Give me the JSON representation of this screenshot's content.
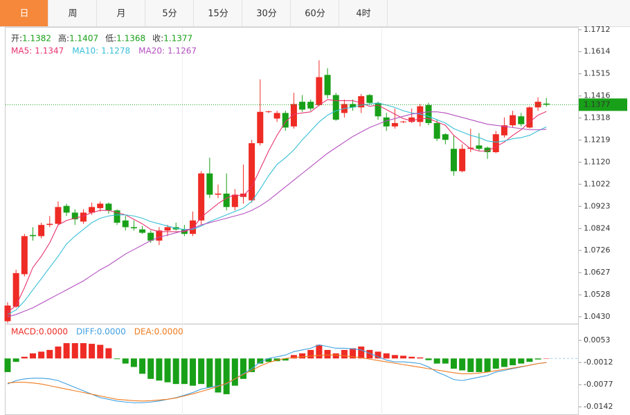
{
  "tabs": [
    "日",
    "周",
    "月",
    "5分",
    "15分",
    "30分",
    "60分",
    "4时"
  ],
  "active_tab": 0,
  "chart_data": {
    "type": "candlestick",
    "up_color": "#ee2b24",
    "down_color": "#18a018",
    "ylim": [
      1.0402,
      1.1721
    ],
    "yticks": [
      1.1712,
      1.1614,
      1.1515,
      1.1416,
      1.1318,
      1.1219,
      {
        "value": 1.112,
        "label": "1.1120"
      },
      1.1022,
      1.0923,
      1.0824,
      1.0726,
      1.0627,
      1.0528,
      {
        "value": 1.043,
        "label": "1.0430"
      }
    ],
    "ohlc_labels": [
      "开:",
      "高:",
      "低:",
      "收:"
    ],
    "open": [
      1.041,
      1.0475,
      1.062,
      1.0795,
      1.079,
      1.084,
      1.0845,
      1.0925,
      1.0895,
      1.0855,
      1.0895,
      1.0915,
      1.0935,
      1.0905,
      1.086,
      1.083,
      1.082,
      1.0805,
      1.077,
      1.0815,
      1.083,
      1.082,
      1.08,
      1.086,
      1.107,
      1.0975,
      1.098,
      1.092,
      1.0965,
      1.095,
      1.1205,
      1.1345,
      1.1315,
      1.134,
      1.128,
      1.139,
      1.139,
      1.1375,
      1.151,
      1.142,
      1.134,
      1.138,
      1.1365,
      1.142,
      1.1385,
      1.132,
      1.128,
      1.13,
      1.13,
      1.13,
      1.1375,
      1.1295,
      1.1245,
      1.118,
      1.108,
      1.118,
      1.1195,
      1.1185,
      1.1165,
      1.124,
      1.1285,
      1.1325,
      1.1275,
      1.1365,
      1.1382
    ],
    "high": [
      1.0495,
      1.064,
      1.08,
      1.083,
      1.085,
      1.088,
      1.0945,
      1.0935,
      1.091,
      1.091,
      1.094,
      1.0945,
      1.094,
      1.091,
      1.088,
      1.086,
      1.0835,
      1.0815,
      1.083,
      1.084,
      1.085,
      1.084,
      1.09,
      1.108,
      1.114,
      1.102,
      1.107,
      1.1,
      1.111,
      1.122,
      1.149,
      1.135,
      1.135,
      1.135,
      1.143,
      1.142,
      1.14,
      1.1575,
      1.154,
      1.143,
      1.14,
      1.14,
      1.1425,
      1.1425,
      1.139,
      1.134,
      1.136,
      1.1305,
      1.136,
      1.138,
      1.1385,
      1.131,
      1.125,
      1.124,
      1.12,
      1.127,
      1.125,
      1.119,
      1.126,
      1.132,
      1.135,
      1.134,
      1.137,
      1.141,
      1.1407
    ],
    "low": [
      1.0402,
      1.047,
      1.061,
      1.077,
      1.078,
      1.083,
      1.084,
      1.088,
      1.084,
      1.0845,
      1.0885,
      1.09,
      1.089,
      1.084,
      1.0815,
      1.0815,
      1.08,
      1.076,
      1.075,
      1.079,
      1.0815,
      1.079,
      1.079,
      1.084,
      1.096,
      1.096,
      1.0905,
      1.0905,
      1.0935,
      1.094,
      1.1195,
      1.134,
      1.13,
      1.126,
      1.127,
      1.1345,
      1.135,
      1.137,
      1.1405,
      1.1305,
      1.132,
      1.135,
      1.134,
      1.138,
      1.131,
      1.126,
      1.127,
      1.1295,
      1.1295,
      1.128,
      1.1285,
      1.1215,
      1.12,
      1.106,
      1.1075,
      1.1165,
      1.117,
      1.1135,
      1.116,
      1.123,
      1.1275,
      1.128,
      1.127,
      1.135,
      1.1368
    ],
    "close": [
      1.048,
      1.0625,
      1.079,
      1.079,
      1.084,
      1.0845,
      1.092,
      1.0895,
      1.0865,
      1.0895,
      1.092,
      1.0935,
      1.0905,
      1.085,
      1.083,
      1.0825,
      1.0805,
      1.077,
      1.0815,
      1.083,
      1.082,
      1.08,
      1.086,
      1.107,
      1.0975,
      1.098,
      1.092,
      1.0975,
      1.098,
      1.1205,
      1.1345,
      1.1347,
      1.134,
      1.1275,
      1.138,
      1.1355,
      1.136,
      1.15,
      1.142,
      1.131,
      1.138,
      1.1365,
      1.1415,
      1.1385,
      1.1325,
      1.128,
      1.1295,
      1.1302,
      1.132,
      1.137,
      1.1295,
      1.1225,
      1.122,
      1.108,
      1.118,
      1.1185,
      1.118,
      1.1165,
      1.1245,
      1.1285,
      1.133,
      1.129,
      1.1365,
      1.139,
      1.1377
    ],
    "series": [
      {
        "name": "MA5:",
        "color": "#e8336e",
        "values": [
          1.045,
          1.048,
          1.056,
          1.065,
          1.07,
          1.076,
          1.084,
          1.086,
          1.087,
          1.088,
          1.0895,
          1.0905,
          1.0905,
          1.0895,
          1.0885,
          1.0865,
          1.0845,
          1.082,
          1.081,
          1.081,
          1.081,
          1.081,
          1.0825,
          1.0875,
          1.0905,
          1.0935,
          1.096,
          1.0975,
          1.097,
          1.101,
          1.109,
          1.117,
          1.124,
          1.13,
          1.1335,
          1.134,
          1.1345,
          1.1375,
          1.14,
          1.1395,
          1.1395,
          1.1395,
          1.1385,
          1.137,
          1.1375,
          1.1355,
          1.1335,
          1.1315,
          1.1305,
          1.1315,
          1.1315,
          1.13,
          1.1285,
          1.124,
          1.121,
          1.118,
          1.117,
          1.117,
          1.119,
          1.121,
          1.124,
          1.1265,
          1.13,
          1.133,
          1.1347
        ]
      },
      {
        "name": "MA10:",
        "color": "#35bfd6",
        "values": [
          1.044,
          1.046,
          1.05,
          1.055,
          1.06,
          1.065,
          1.07,
          1.0755,
          1.079,
          1.082,
          1.085,
          1.087,
          1.088,
          1.0885,
          1.0885,
          1.088,
          1.087,
          1.0855,
          1.0845,
          1.0835,
          1.0825,
          1.082,
          1.082,
          1.0835,
          1.0855,
          1.087,
          1.0885,
          1.09,
          1.0915,
          1.0945,
          1.1,
          1.106,
          1.111,
          1.114,
          1.1175,
          1.122,
          1.126,
          1.13,
          1.133,
          1.135,
          1.136,
          1.1365,
          1.1375,
          1.138,
          1.1385,
          1.1375,
          1.1365,
          1.135,
          1.134,
          1.1335,
          1.1325,
          1.131,
          1.1295,
          1.127,
          1.1255,
          1.124,
          1.123,
          1.1215,
          1.121,
          1.1215,
          1.1225,
          1.123,
          1.124,
          1.126,
          1.1278
        ]
      },
      {
        "name": "MA20:",
        "color": "#b44fc0",
        "values": [
          1.043,
          1.044,
          1.0455,
          1.047,
          1.049,
          1.051,
          1.053,
          1.055,
          1.057,
          1.059,
          1.0615,
          1.064,
          1.066,
          1.0685,
          1.071,
          1.073,
          1.075,
          1.077,
          1.0785,
          1.0795,
          1.0805,
          1.0815,
          1.0825,
          1.084,
          1.085,
          1.086,
          1.087,
          1.088,
          1.089,
          1.0905,
          1.0925,
          1.095,
          1.098,
          1.101,
          1.104,
          1.107,
          1.11,
          1.113,
          1.116,
          1.1185,
          1.121,
          1.1235,
          1.1255,
          1.1275,
          1.129,
          1.1305,
          1.1315,
          1.1325,
          1.1335,
          1.134,
          1.1345,
          1.1345,
          1.134,
          1.133,
          1.132,
          1.131,
          1.13,
          1.129,
          1.1285,
          1.128,
          1.1275,
          1.127,
          1.1265,
          1.1265,
          1.1267
        ]
      }
    ],
    "last_color": "#18a018",
    "macd": {
      "ylim": [
        -0.0162,
        0.0098
      ],
      "yticks": [
        0.0053,
        -0.0012,
        -0.0077,
        -0.0142
      ],
      "legend": [
        {
          "label": "MACD:",
          "value": 0,
          "value_label": "0.0000",
          "color": "#ee2b24"
        },
        {
          "label": "DIFF:",
          "value": 0,
          "value_label": "0.0000",
          "color": "#3f9fe0"
        },
        {
          "label": "DEA:",
          "value": 0,
          "value_label": "0.0000",
          "color": "#f07a1e"
        }
      ],
      "hist": [
        -0.004,
        -0.001,
        0.0005,
        0.0015,
        0.002,
        0.0025,
        0.0035,
        0.0045,
        0.0045,
        0.0045,
        0.0043,
        0.004,
        0.003,
        -0.0002,
        -0.0015,
        -0.0025,
        -0.0045,
        -0.006,
        -0.0065,
        -0.007,
        -0.0075,
        -0.0075,
        -0.008,
        -0.0075,
        -0.0085,
        -0.01,
        -0.0105,
        -0.008,
        -0.006,
        -0.004,
        -0.0015,
        -0.001,
        -0.0008,
        -0.0006,
        0.001,
        0.0015,
        0.0025,
        0.004,
        0.0025,
        0.0015,
        0.0025,
        0.003,
        0.0035,
        0.0025,
        0.002,
        0.0015,
        0.001,
        0.0008,
        0.0005,
        0.0003,
        -0.0005,
        -0.0015,
        -0.0015,
        -0.003,
        -0.0035,
        -0.004,
        -0.004,
        -0.004,
        -0.003,
        -0.0025,
        -0.002,
        -0.0015,
        -0.001,
        -0.0003,
        0.0
      ],
      "diff": [
        -0.0075,
        -0.0065,
        -0.006,
        -0.0058,
        -0.0058,
        -0.006,
        -0.0065,
        -0.0075,
        -0.0085,
        -0.0095,
        -0.0105,
        -0.0115,
        -0.012,
        -0.0125,
        -0.0128,
        -0.013,
        -0.013,
        -0.0128,
        -0.0125,
        -0.012,
        -0.0115,
        -0.0108,
        -0.01,
        -0.009,
        -0.0085,
        -0.008,
        -0.0075,
        -0.006,
        -0.0045,
        -0.003,
        -0.001,
        0.0,
        0.0005,
        0.001,
        0.002,
        0.0025,
        0.003,
        0.004,
        0.0035,
        0.003,
        0.003,
        0.0028,
        0.0025,
        0.0015,
        0.0005,
        -0.0005,
        -0.001,
        -0.001,
        -0.0012,
        -0.0015,
        -0.0025,
        -0.004,
        -0.005,
        -0.0062,
        -0.0065,
        -0.006,
        -0.0055,
        -0.005,
        -0.004,
        -0.0035,
        -0.003,
        -0.0025,
        -0.002,
        -0.0015,
        -0.0012
      ],
      "dea": [
        -0.0072,
        -0.007,
        -0.007,
        -0.0072,
        -0.0075,
        -0.008,
        -0.0085,
        -0.009,
        -0.0095,
        -0.01,
        -0.0105,
        -0.011,
        -0.0115,
        -0.012,
        -0.0122,
        -0.0124,
        -0.0125,
        -0.0124,
        -0.0122,
        -0.012,
        -0.0116,
        -0.011,
        -0.0104,
        -0.0097,
        -0.009,
        -0.0082,
        -0.0073,
        -0.006,
        -0.0047,
        -0.0035,
        -0.0022,
        -0.0012,
        -0.0005,
        0.0,
        0.0003,
        0.0005,
        0.0007,
        0.0009,
        0.001,
        0.001,
        0.0008,
        0.0005,
        0.0002,
        -0.0002,
        -0.0006,
        -0.001,
        -0.0014,
        -0.0018,
        -0.0022,
        -0.0026,
        -0.003,
        -0.0034,
        -0.0038,
        -0.0042,
        -0.0045,
        -0.0045,
        -0.0043,
        -0.004,
        -0.0036,
        -0.0032,
        -0.0028,
        -0.0024,
        -0.002,
        -0.0015,
        -0.0012
      ]
    }
  }
}
